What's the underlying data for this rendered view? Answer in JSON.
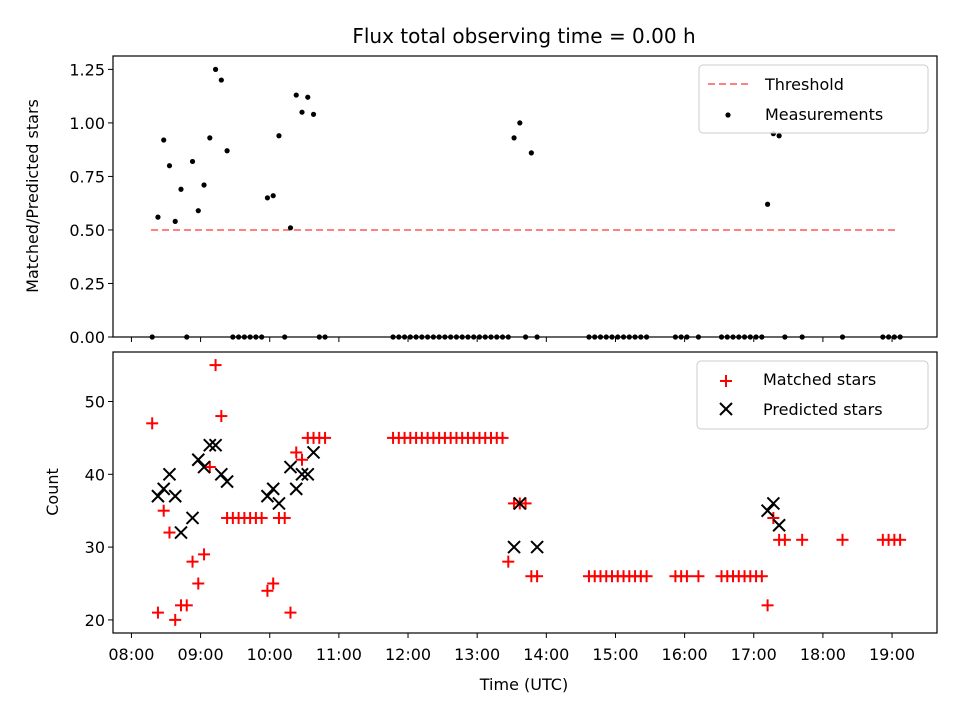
{
  "chart_data": [
    {
      "type": "scatter",
      "title": "Flux total observing time = 0.00 h",
      "xlabel": "",
      "ylabel": "Matched/Predicted stars",
      "xlim": [
        "07:44",
        "19:39"
      ],
      "ylim": [
        0,
        1.3125
      ],
      "yticks": [
        "0.00",
        "0.25",
        "0.50",
        "0.75",
        "1.00",
        "1.25"
      ],
      "threshold": {
        "name": "Threshold",
        "color": "#ff8080",
        "style": "dashed",
        "value": 0.5,
        "x_start": "08:17",
        "x_end": "19:06"
      },
      "series": [
        {
          "name": "Measurements",
          "color": "#000000",
          "marker": "dot",
          "points": [
            [
              "08:18",
              0.0
            ],
            [
              "08:23",
              0.56
            ],
            [
              "08:28",
              0.92
            ],
            [
              "08:33",
              0.8
            ],
            [
              "08:38",
              0.54
            ],
            [
              "08:43",
              0.69
            ],
            [
              "08:48",
              0.0
            ],
            [
              "08:53",
              0.82
            ],
            [
              "08:58",
              0.59
            ],
            [
              "09:03",
              0.71
            ],
            [
              "09:08",
              0.93
            ],
            [
              "09:13",
              1.25
            ],
            [
              "09:18",
              1.2
            ],
            [
              "09:23",
              0.87
            ],
            [
              "09:28",
              0.0
            ],
            [
              "09:33",
              0.0
            ],
            [
              "09:38",
              0.0
            ],
            [
              "09:43",
              0.0
            ],
            [
              "09:48",
              0.0
            ],
            [
              "09:53",
              0.0
            ],
            [
              "09:58",
              0.65
            ],
            [
              "10:03",
              0.66
            ],
            [
              "10:08",
              0.94
            ],
            [
              "10:13",
              0.0
            ],
            [
              "10:18",
              0.51
            ],
            [
              "10:23",
              1.13
            ],
            [
              "10:28",
              1.05
            ],
            [
              "10:33",
              1.12
            ],
            [
              "10:38",
              1.04
            ],
            [
              "10:43",
              0.0
            ],
            [
              "10:48",
              0.0
            ],
            [
              "11:47",
              0.0
            ],
            [
              "11:52",
              0.0
            ],
            [
              "11:57",
              0.0
            ],
            [
              "12:02",
              0.0
            ],
            [
              "12:07",
              0.0
            ],
            [
              "12:12",
              0.0
            ],
            [
              "12:17",
              0.0
            ],
            [
              "12:22",
              0.0
            ],
            [
              "12:27",
              0.0
            ],
            [
              "12:32",
              0.0
            ],
            [
              "12:37",
              0.0
            ],
            [
              "12:42",
              0.0
            ],
            [
              "12:47",
              0.0
            ],
            [
              "12:52",
              0.0
            ],
            [
              "12:57",
              0.0
            ],
            [
              "13:02",
              0.0
            ],
            [
              "13:07",
              0.0
            ],
            [
              "13:12",
              0.0
            ],
            [
              "13:17",
              0.0
            ],
            [
              "13:22",
              0.0
            ],
            [
              "13:27",
              0.0
            ],
            [
              "13:32",
              0.93
            ],
            [
              "13:37",
              1.0
            ],
            [
              "13:42",
              0.0
            ],
            [
              "13:47",
              0.86
            ],
            [
              "13:52",
              0.0
            ],
            [
              "14:37",
              0.0
            ],
            [
              "14:42",
              0.0
            ],
            [
              "14:47",
              0.0
            ],
            [
              "14:52",
              0.0
            ],
            [
              "14:57",
              0.0
            ],
            [
              "15:02",
              0.0
            ],
            [
              "15:07",
              0.0
            ],
            [
              "15:12",
              0.0
            ],
            [
              "15:17",
              0.0
            ],
            [
              "15:22",
              0.0
            ],
            [
              "15:27",
              0.0
            ],
            [
              "15:52",
              0.0
            ],
            [
              "15:57",
              0.0
            ],
            [
              "16:02",
              0.0
            ],
            [
              "16:12",
              0.0
            ],
            [
              "16:32",
              0.0
            ],
            [
              "16:37",
              0.0
            ],
            [
              "16:42",
              0.0
            ],
            [
              "16:47",
              0.0
            ],
            [
              "16:52",
              0.0
            ],
            [
              "16:57",
              0.0
            ],
            [
              "17:02",
              0.0
            ],
            [
              "17:07",
              0.0
            ],
            [
              "17:12",
              0.62
            ],
            [
              "17:17",
              0.95
            ],
            [
              "17:22",
              0.94
            ],
            [
              "17:27",
              0.0
            ],
            [
              "17:42",
              0.0
            ],
            [
              "18:17",
              0.0
            ],
            [
              "18:52",
              0.0
            ],
            [
              "18:57",
              0.0
            ],
            [
              "19:02",
              0.0
            ],
            [
              "19:07",
              0.0
            ]
          ]
        }
      ],
      "legend": {
        "placement": "top-right",
        "entries": [
          "Threshold",
          "Measurements"
        ]
      }
    },
    {
      "type": "scatter",
      "title": "",
      "xlabel": "Time (UTC)",
      "ylabel": "Count",
      "xlim": [
        "07:44",
        "19:39"
      ],
      "ylim": [
        18.2,
        56.8
      ],
      "yticks": [
        "20",
        "30",
        "40",
        "50"
      ],
      "xticks": [
        "08:00",
        "09:00",
        "10:00",
        "11:00",
        "12:00",
        "13:00",
        "14:00",
        "15:00",
        "16:00",
        "17:00",
        "18:00",
        "19:00"
      ],
      "series": [
        {
          "name": "Matched stars",
          "color": "#ff0000",
          "marker": "plus",
          "points": [
            [
              "08:18",
              47
            ],
            [
              "08:23",
              21
            ],
            [
              "08:28",
              35
            ],
            [
              "08:33",
              32
            ],
            [
              "08:38",
              20
            ],
            [
              "08:43",
              22
            ],
            [
              "08:48",
              22
            ],
            [
              "08:53",
              28
            ],
            [
              "08:58",
              25
            ],
            [
              "09:03",
              29
            ],
            [
              "09:08",
              41
            ],
            [
              "09:13",
              55
            ],
            [
              "09:18",
              48
            ],
            [
              "09:23",
              34
            ],
            [
              "09:28",
              34
            ],
            [
              "09:33",
              34
            ],
            [
              "09:38",
              34
            ],
            [
              "09:43",
              34
            ],
            [
              "09:48",
              34
            ],
            [
              "09:53",
              34
            ],
            [
              "09:58",
              24
            ],
            [
              "10:03",
              25
            ],
            [
              "10:08",
              34
            ],
            [
              "10:13",
              34
            ],
            [
              "10:18",
              21
            ],
            [
              "10:23",
              43
            ],
            [
              "10:28",
              42
            ],
            [
              "10:33",
              45
            ],
            [
              "10:38",
              45
            ],
            [
              "10:43",
              45
            ],
            [
              "10:48",
              45
            ],
            [
              "11:47",
              45
            ],
            [
              "11:52",
              45
            ],
            [
              "11:57",
              45
            ],
            [
              "12:02",
              45
            ],
            [
              "12:07",
              45
            ],
            [
              "12:12",
              45
            ],
            [
              "12:17",
              45
            ],
            [
              "12:22",
              45
            ],
            [
              "12:27",
              45
            ],
            [
              "12:32",
              45
            ],
            [
              "12:37",
              45
            ],
            [
              "12:42",
              45
            ],
            [
              "12:47",
              45
            ],
            [
              "12:52",
              45
            ],
            [
              "12:57",
              45
            ],
            [
              "13:02",
              45
            ],
            [
              "13:07",
              45
            ],
            [
              "13:12",
              45
            ],
            [
              "13:17",
              45
            ],
            [
              "13:22",
              45
            ],
            [
              "13:27",
              28
            ],
            [
              "13:32",
              36
            ],
            [
              "13:37",
              36
            ],
            [
              "13:42",
              36
            ],
            [
              "13:47",
              26
            ],
            [
              "13:52",
              26
            ],
            [
              "14:37",
              26
            ],
            [
              "14:42",
              26
            ],
            [
              "14:47",
              26
            ],
            [
              "14:52",
              26
            ],
            [
              "14:57",
              26
            ],
            [
              "15:02",
              26
            ],
            [
              "15:07",
              26
            ],
            [
              "15:12",
              26
            ],
            [
              "15:17",
              26
            ],
            [
              "15:22",
              26
            ],
            [
              "15:27",
              26
            ],
            [
              "15:52",
              26
            ],
            [
              "15:57",
              26
            ],
            [
              "16:02",
              26
            ],
            [
              "16:12",
              26
            ],
            [
              "16:32",
              26
            ],
            [
              "16:37",
              26
            ],
            [
              "16:42",
              26
            ],
            [
              "16:47",
              26
            ],
            [
              "16:52",
              26
            ],
            [
              "16:57",
              26
            ],
            [
              "17:02",
              26
            ],
            [
              "17:07",
              26
            ],
            [
              "17:12",
              22
            ],
            [
              "17:17",
              34
            ],
            [
              "17:22",
              31
            ],
            [
              "17:27",
              31
            ],
            [
              "17:42",
              31
            ],
            [
              "18:17",
              31
            ],
            [
              "18:52",
              31
            ],
            [
              "18:57",
              31
            ],
            [
              "19:02",
              31
            ],
            [
              "19:07",
              31
            ]
          ]
        },
        {
          "name": "Predicted stars",
          "color": "#000000",
          "marker": "x",
          "points": [
            [
              "08:23",
              37
            ],
            [
              "08:28",
              38
            ],
            [
              "08:33",
              40
            ],
            [
              "08:38",
              37
            ],
            [
              "08:43",
              32
            ],
            [
              "08:53",
              34
            ],
            [
              "08:58",
              42
            ],
            [
              "09:03",
              41
            ],
            [
              "09:08",
              44
            ],
            [
              "09:13",
              44
            ],
            [
              "09:18",
              40
            ],
            [
              "09:23",
              39
            ],
            [
              "09:58",
              37
            ],
            [
              "10:03",
              38
            ],
            [
              "10:08",
              36
            ],
            [
              "10:18",
              41
            ],
            [
              "10:23",
              38
            ],
            [
              "10:28",
              40
            ],
            [
              "10:33",
              40
            ],
            [
              "10:38",
              43
            ],
            [
              "13:32",
              30
            ],
            [
              "13:37",
              36
            ],
            [
              "13:52",
              30
            ],
            [
              "17:12",
              35
            ],
            [
              "17:17",
              36
            ],
            [
              "17:22",
              33
            ]
          ]
        }
      ],
      "legend": {
        "placement": "top-right",
        "entries": [
          "Matched stars",
          "Predicted stars"
        ]
      }
    }
  ]
}
